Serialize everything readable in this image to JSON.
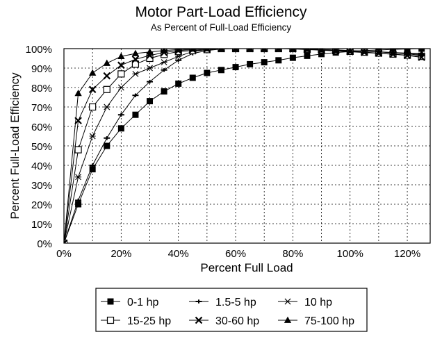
{
  "chart_data": {
    "type": "line",
    "title": "Motor Part-Load Efficiency",
    "subtitle": "As Percent of Full-Load Efficiency",
    "xlabel": "Percent Full Load",
    "ylabel": "Percent Full-Load Efficiency",
    "xlim": [
      0,
      128
    ],
    "ylim": [
      0,
      100
    ],
    "x_ticks": [
      0,
      20,
      40,
      60,
      80,
      100,
      120
    ],
    "x_tick_labels": [
      "0%",
      "20%",
      "40%",
      "60%",
      "80%",
      "100%",
      "120%"
    ],
    "y_ticks": [
      0,
      10,
      20,
      30,
      40,
      50,
      60,
      70,
      80,
      90,
      100
    ],
    "y_tick_labels": [
      "0%",
      "10%",
      "20%",
      "30%",
      "40%",
      "50%",
      "60%",
      "70%",
      "80%",
      "90%",
      "100%"
    ],
    "grid": true,
    "legend_position": "bottom",
    "x": [
      0,
      5,
      10,
      15,
      20,
      25,
      30,
      35,
      40,
      45,
      50,
      55,
      60,
      65,
      70,
      75,
      80,
      85,
      90,
      95,
      100,
      105,
      110,
      115,
      120,
      125
    ],
    "series": [
      {
        "name": "0-1 hp",
        "marker": "filled-square",
        "values": [
          0,
          20,
          38,
          50,
          59,
          66,
          73,
          78,
          82,
          85,
          87.5,
          89,
          90.5,
          92,
          93,
          94,
          95.3,
          96.3,
          97.2,
          98,
          98.5,
          99,
          99.3,
          99.6,
          99.8,
          100
        ]
      },
      {
        "name": "1.5-5 hp",
        "marker": "plus",
        "values": [
          0,
          22,
          40,
          54,
          66,
          76,
          83,
          89,
          94,
          97.5,
          99,
          99.8,
          100,
          100,
          100,
          100,
          100,
          99.8,
          99.5,
          99.3,
          99,
          98.7,
          98.4,
          98,
          97.6,
          97
        ]
      },
      {
        "name": "10 hp",
        "marker": "star",
        "values": [
          0,
          34,
          55,
          70,
          80,
          87,
          90,
          93,
          96,
          98.5,
          99.5,
          100,
          100,
          100,
          100,
          100,
          100,
          99.8,
          99.5,
          99.3,
          99,
          98.7,
          98.3,
          97.8,
          97.3,
          96.5
        ]
      },
      {
        "name": "15-25 hp",
        "marker": "open-square",
        "values": [
          0,
          48,
          70,
          79,
          87,
          92,
          95,
          97,
          98.5,
          99,
          99.5,
          100,
          100,
          100,
          100,
          100,
          100,
          99.7,
          99.4,
          99,
          98.6,
          98.2,
          97.7,
          97.2,
          96.6,
          96
        ]
      },
      {
        "name": "30-60 hp",
        "marker": "x",
        "values": [
          0,
          63,
          79,
          86,
          91.5,
          94.5,
          96.5,
          98,
          99,
          99.5,
          99.8,
          100,
          100,
          100,
          100,
          100,
          99.8,
          99.5,
          99.2,
          98.8,
          98.4,
          98,
          97.6,
          97.1,
          96.5,
          95.5
        ]
      },
      {
        "name": "75-100 hp",
        "marker": "filled-triangle",
        "values": [
          0,
          77,
          87.5,
          92.5,
          96,
          97.5,
          98.3,
          99,
          99.5,
          99.8,
          100,
          100,
          100,
          100,
          100,
          100,
          100,
          99.8,
          99.5,
          99.2,
          98.9,
          98.6,
          98.3,
          98,
          97.7,
          97.4
        ]
      }
    ]
  }
}
